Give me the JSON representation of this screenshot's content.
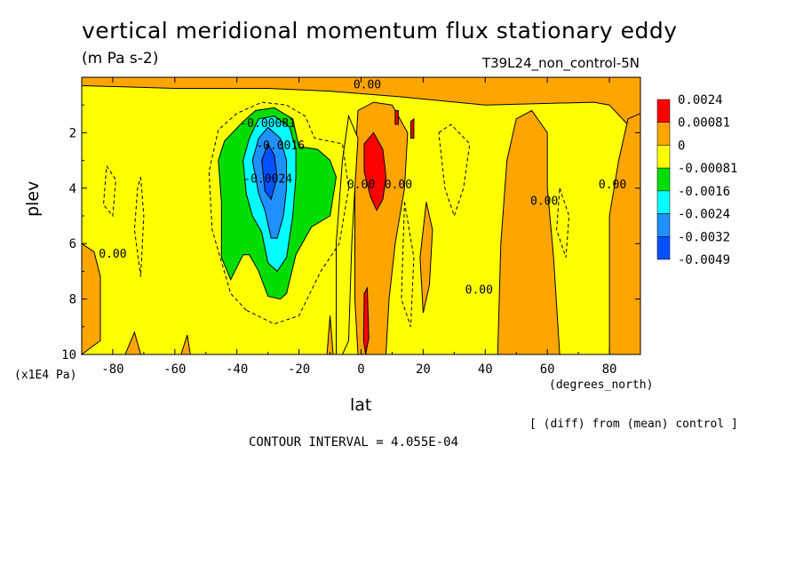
{
  "chart_data": {
    "type": "heatmap",
    "title": "vertical meridional momentum flux stationary eddy",
    "units": "(m Pa s-2)",
    "run_label": "T39L24_non_control-5N",
    "xlabel": "lat",
    "xunit": "(degrees_north)",
    "ylabel": "plev",
    "yunit": "(x1E4 Pa)",
    "xlim": [
      -90,
      90
    ],
    "ylim": [
      10,
      0
    ],
    "x_ticks": [
      -80,
      -60,
      -40,
      -20,
      0,
      20,
      40,
      60,
      80
    ],
    "x_tick_labels": [
      "-80",
      "-60",
      "-40",
      "-20",
      "0",
      "20",
      "40",
      "60",
      "80"
    ],
    "y_ticks": [
      2,
      4,
      6,
      8,
      10
    ],
    "y_tick_labels": [
      "2",
      "4",
      "6",
      "8",
      "10"
    ],
    "grid": false,
    "legend_position": "right",
    "colorbar": {
      "colors": [
        "#ff0000",
        "#ffa500",
        "#ffff00",
        "#00dd00",
        "#00ffff",
        "#1e90ff",
        "#0050ff"
      ],
      "labels": [
        "0.0024",
        "0.00081",
        "0",
        "-0.00081",
        "-0.0016",
        "-0.0024",
        "-0.0032",
        "-0.0049"
      ]
    },
    "background_value_color": "#ffff00",
    "regions": [
      {
        "level": "0 to 0.00081",
        "color": "#ffa500",
        "path": [
          [
            -90,
            0
          ],
          [
            90,
            0
          ],
          [
            90,
            2.2
          ],
          [
            85,
            1.6
          ],
          [
            80,
            1.0
          ],
          [
            75,
            0.9
          ],
          [
            40,
            1.0
          ],
          [
            12,
            0.7
          ],
          [
            -10,
            0.5
          ],
          [
            -30,
            0.4
          ],
          [
            -60,
            0.4
          ],
          [
            -90,
            0.3
          ]
        ]
      },
      {
        "level": "0 to 0.00081",
        "color": "#ffa500",
        "path": [
          [
            -1,
            1.2
          ],
          [
            4,
            0.9
          ],
          [
            10,
            1.0
          ],
          [
            15,
            2.0
          ],
          [
            14,
            4.0
          ],
          [
            11,
            6.0
          ],
          [
            9,
            8.0
          ],
          [
            8,
            10
          ],
          [
            -1,
            10
          ],
          [
            -2,
            8
          ],
          [
            -2,
            5
          ],
          [
            -2,
            3
          ]
        ]
      },
      {
        "level": "0 to 0.00081",
        "color": "#ffa500",
        "path": [
          [
            44,
            10
          ],
          [
            45,
            6
          ],
          [
            47,
            3
          ],
          [
            50,
            1.5
          ],
          [
            55,
            1.2
          ],
          [
            60,
            2.0
          ],
          [
            60,
            4.0
          ],
          [
            62,
            6.5
          ],
          [
            64,
            10
          ]
        ]
      },
      {
        "level": "0 to 0.00081",
        "color": "#ffa500",
        "path": [
          [
            80,
            10
          ],
          [
            80,
            5
          ],
          [
            83,
            3
          ],
          [
            86,
            1.5
          ],
          [
            90,
            1.3
          ],
          [
            90,
            10
          ]
        ]
      },
      {
        "level": "0 to 0.00081",
        "color": "#ffa500",
        "path": [
          [
            -90,
            6.0
          ],
          [
            -86,
            6.3
          ],
          [
            -84,
            7.2
          ],
          [
            -84,
            9.5
          ],
          [
            -90,
            10
          ]
        ]
      },
      {
        "level": "0 to 0.00081",
        "color": "#ffa500",
        "path": [
          [
            21,
            4.5
          ],
          [
            23,
            5.5
          ],
          [
            22,
            7.5
          ],
          [
            20,
            8.5
          ],
          [
            19,
            6.5
          ]
        ]
      },
      {
        "level": "0 to 0.00081",
        "color": "#ffa500",
        "path": [
          [
            -73,
            9.2
          ],
          [
            -71,
            10
          ],
          [
            -76,
            10
          ]
        ]
      },
      {
        "level": "0 to 0.00081",
        "color": "#ffa500",
        "path": [
          [
            -56,
            9.3
          ],
          [
            -55,
            10
          ],
          [
            -58,
            10
          ]
        ]
      },
      {
        "level": "0 to 0.00081",
        "color": "#ffa500",
        "path": [
          [
            -10,
            8.6
          ],
          [
            -9,
            10
          ],
          [
            -11,
            10
          ]
        ]
      },
      {
        "level": "-0.00081 to 0",
        "color": "#ffff00",
        "path": [
          [
            -4,
            1.4
          ],
          [
            -1,
            2.2
          ],
          [
            -2,
            4.0
          ],
          [
            -3,
            6.0
          ],
          [
            -4,
            9.5
          ],
          [
            -6,
            10
          ],
          [
            -8,
            10
          ],
          [
            -8,
            6
          ],
          [
            -6,
            3
          ]
        ]
      },
      {
        "level": "0.00081 to 0.0024",
        "color": "#ff0000",
        "path": [
          [
            1,
            2.4
          ],
          [
            4,
            2.0
          ],
          [
            7,
            2.6
          ],
          [
            8,
            3.6
          ],
          [
            7,
            4.4
          ],
          [
            5,
            4.8
          ],
          [
            3,
            4.3
          ],
          [
            1,
            3.4
          ]
        ]
      },
      {
        "level": "0.00081 to 0.0024",
        "color": "#ff0000",
        "path": [
          [
            1,
            7.8
          ],
          [
            2,
            7.6
          ],
          [
            2.5,
            9.4
          ],
          [
            1.5,
            10
          ],
          [
            0.8,
            9.5
          ]
        ]
      },
      {
        "level": "0.00081 to 0.0024",
        "color": "#ff0000",
        "path": [
          [
            16,
            1.6
          ],
          [
            17,
            1.5
          ],
          [
            17,
            2.2
          ],
          [
            16,
            2.2
          ]
        ]
      },
      {
        "level": "0.00081 to 0.0024",
        "color": "#ff0000",
        "path": [
          [
            11,
            1.2
          ],
          [
            12,
            1.2
          ],
          [
            12,
            1.7
          ],
          [
            11,
            1.7
          ]
        ]
      },
      {
        "level": "-0.0016 to -0.00081",
        "color": "#00dd00",
        "path": [
          [
            -45,
            4.5
          ],
          [
            -46,
            3.0
          ],
          [
            -44,
            2.3
          ],
          [
            -38,
            1.6
          ],
          [
            -34,
            1.2
          ],
          [
            -28,
            1.1
          ],
          [
            -22,
            1.5
          ],
          [
            -20,
            2.5
          ],
          [
            -14,
            2.6
          ],
          [
            -10,
            3.0
          ],
          [
            -8,
            3.6
          ],
          [
            -10,
            5.0
          ],
          [
            -16,
            5.4
          ],
          [
            -21,
            6.4
          ],
          [
            -24,
            7.8
          ],
          [
            -26,
            8.0
          ],
          [
            -30,
            7.9
          ],
          [
            -33,
            7.0
          ],
          [
            -36,
            6.4
          ],
          [
            -38,
            6.4
          ],
          [
            -42,
            7.3
          ],
          [
            -45,
            6.5
          ]
        ]
      },
      {
        "level": "-0.0024 to -0.0016",
        "color": "#00ffff",
        "path": [
          [
            -38,
            3.0
          ],
          [
            -36,
            2.2
          ],
          [
            -33,
            1.5
          ],
          [
            -28,
            1.4
          ],
          [
            -23,
            1.8
          ],
          [
            -21,
            2.6
          ],
          [
            -21,
            3.6
          ],
          [
            -22,
            5.0
          ],
          [
            -24,
            6.5
          ],
          [
            -27,
            7.0
          ],
          [
            -30,
            6.7
          ],
          [
            -32,
            5.6
          ],
          [
            -35,
            5.0
          ],
          [
            -37,
            4.2
          ]
        ]
      },
      {
        "level": "-0.0032 to -0.0024",
        "color": "#1e90ff",
        "path": [
          [
            -35,
            3.0
          ],
          [
            -33,
            2.2
          ],
          [
            -30,
            1.8
          ],
          [
            -26,
            2.2
          ],
          [
            -24,
            3.0
          ],
          [
            -24,
            4.0
          ],
          [
            -25,
            5.0
          ],
          [
            -27,
            5.8
          ],
          [
            -29,
            5.8
          ],
          [
            -31,
            4.8
          ],
          [
            -33,
            4.2
          ]
        ]
      },
      {
        "level": "-0.0049 to -0.0032",
        "color": "#0050ff",
        "path": [
          [
            -32,
            3.0
          ],
          [
            -30,
            2.4
          ],
          [
            -28,
            2.8
          ],
          [
            -27,
            3.6
          ],
          [
            -29,
            4.4
          ],
          [
            -31,
            4.1
          ]
        ]
      }
    ],
    "negative_contours": [
      [
        [
          -71,
          3.6
        ],
        [
          -70,
          5.0
        ],
        [
          -71,
          7.2
        ],
        [
          -73,
          5.5
        ],
        [
          -72,
          4.0
        ],
        [
          -71,
          3.6
        ]
      ],
      [
        [
          -37,
          8.4
        ],
        [
          -42,
          7.8
        ],
        [
          -48,
          5.5
        ],
        [
          -49,
          3.4
        ],
        [
          -46,
          1.9
        ],
        [
          -40,
          1.3
        ],
        [
          -32,
          0.9
        ],
        [
          -24,
          1.0
        ],
        [
          -18,
          1.4
        ],
        [
          -15,
          2.2
        ],
        [
          -6,
          2.4
        ],
        [
          -4,
          4.0
        ],
        [
          -7,
          6.0
        ],
        [
          -13,
          7.0
        ],
        [
          -20,
          8.6
        ],
        [
          -28,
          8.9
        ],
        [
          -37,
          8.4
        ]
      ],
      [
        [
          25,
          2.0
        ],
        [
          29,
          1.7
        ],
        [
          35,
          2.4
        ],
        [
          33,
          4.0
        ],
        [
          30,
          5.0
        ],
        [
          27,
          4.0
        ],
        [
          25,
          2.0
        ]
      ],
      [
        [
          14,
          4.5
        ],
        [
          17,
          6.5
        ],
        [
          16,
          9.0
        ],
        [
          13,
          8.0
        ],
        [
          14,
          4.5
        ]
      ],
      [
        [
          64,
          4.0
        ],
        [
          67,
          5.0
        ],
        [
          66,
          6.5
        ],
        [
          63,
          5.5
        ],
        [
          64,
          4.0
        ]
      ],
      [
        [
          -82,
          3.2
        ],
        [
          -79,
          3.7
        ],
        [
          -80,
          5.0
        ],
        [
          -83,
          4.6
        ],
        [
          -82,
          3.2
        ]
      ]
    ],
    "contour_labels": [
      {
        "x": 2,
        "y": 0.4,
        "text": "0.00"
      },
      {
        "x": -30,
        "y": 1.8,
        "text": "-0.00081"
      },
      {
        "x": -26,
        "y": 2.6,
        "text": "-0.0016"
      },
      {
        "x": -30,
        "y": 3.8,
        "text": "-0.0024"
      },
      {
        "x": 0,
        "y": 4.0,
        "text": "0.00"
      },
      {
        "x": 12,
        "y": 4.0,
        "text": "0.00"
      },
      {
        "x": 59,
        "y": 4.6,
        "text": "0.00"
      },
      {
        "x": 81,
        "y": 4.0,
        "text": "0.00"
      },
      {
        "x": -80,
        "y": 6.5,
        "text": "0.00"
      },
      {
        "x": 38,
        "y": 7.8,
        "text": "0.00"
      }
    ],
    "annotations": [
      "[ (diff) from (mean) control ]",
      "CONTOUR INTERVAL = 4.055E-04"
    ]
  }
}
